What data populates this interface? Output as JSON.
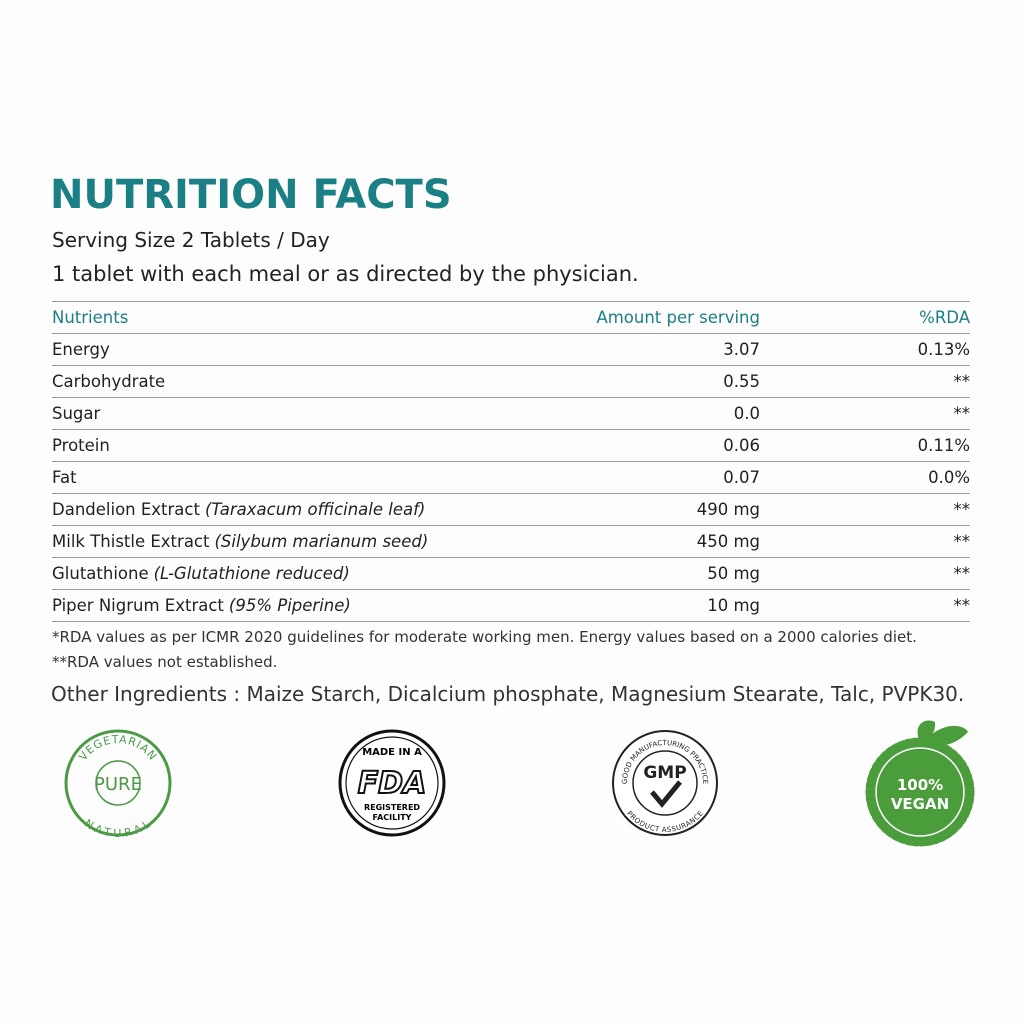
{
  "header": {
    "title": "NUTRITION FACTS",
    "serving": "Serving Size 2 Tablets / Day",
    "directions": "1 tablet with each meal or as directed by the physician."
  },
  "table": {
    "columns": [
      "Nutrients",
      "Amount per serving",
      "%RDA"
    ],
    "rows": [
      {
        "nutrient": "Energy",
        "amount": "3.07",
        "rda": "0.13%"
      },
      {
        "nutrient": "Carbohydrate",
        "amount": "0.55",
        "rda": "**"
      },
      {
        "nutrient": "Sugar",
        "amount": "0.0",
        "rda": "**"
      },
      {
        "nutrient": "Protein",
        "amount": "0.06",
        "rda": "0.11%"
      },
      {
        "nutrient": "Fat",
        "amount": "0.07",
        "rda": "0.0%"
      },
      {
        "nutrient": "Dandelion Extract",
        "note": "(Taraxacum officinale leaf)",
        "amount": "490 mg",
        "rda": "**"
      },
      {
        "nutrient": "Milk Thistle Extract",
        "note": "(Silybum marianum seed)",
        "amount": "450 mg",
        "rda": "**"
      },
      {
        "nutrient": "Glutathione",
        "note": "(L-Glutathione reduced)",
        "amount": "50 mg",
        "rda": "**"
      },
      {
        "nutrient": "Piper Nigrum Extract",
        "note": "(95% Piperine)",
        "amount": "10 mg",
        "rda": "**"
      }
    ]
  },
  "footnotes": [
    "*RDA values as per ICMR 2020 guidelines for moderate working men. Energy values based on a 2000 calories diet.",
    "**RDA values not established."
  ],
  "other_ingredients": "Other Ingredients : Maize Starch, Dicalcium phosphate, Magnesium Stearate, Talc, PVPK30.",
  "badges": {
    "vegetarian": {
      "top": "VEGETARIAN",
      "center": "PURE",
      "bottom": "NATURAL"
    },
    "fda": {
      "top": "MADE IN A",
      "center": "FDA",
      "line1": "REGISTERED",
      "line2": "FACILITY"
    },
    "gmp": {
      "top": "GOOD MANUFACTURING PRACTICE",
      "center": "GMP",
      "bottom": "PRODUCT ASSURANCE"
    },
    "vegan": {
      "line1": "100%",
      "line2": "VEGAN"
    }
  }
}
